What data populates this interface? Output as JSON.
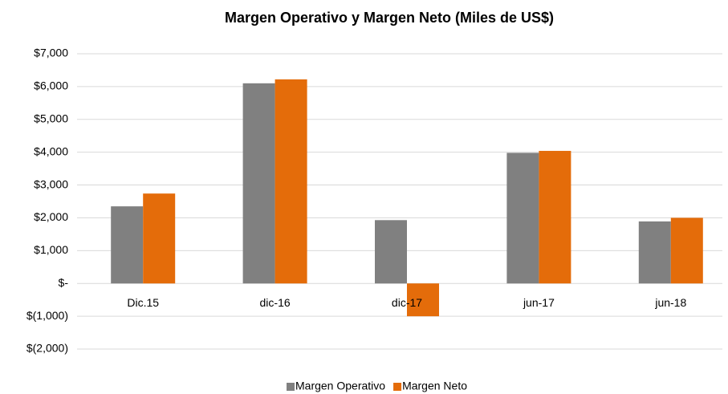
{
  "chart_data": {
    "type": "bar",
    "title": "Margen Operativo y Margen Neto (Miles de US$)",
    "categories": [
      "Dic.15",
      "dic-16",
      "dic-17",
      "jun-17",
      "jun-18"
    ],
    "series": [
      {
        "name": "Margen Operativo",
        "color": "#808080",
        "values": [
          2350,
          6100,
          1930,
          3980,
          1890
        ]
      },
      {
        "name": "Margen Neto",
        "color": "#e46c0a",
        "values": [
          2740,
          6220,
          -1000,
          4040,
          2000
        ]
      }
    ],
    "ylim": [
      -2000,
      7000
    ],
    "yticks": [
      {
        "value": -2000,
        "label": "$(2,000)"
      },
      {
        "value": -1000,
        "label": "$(1,000)"
      },
      {
        "value": 0,
        "label": "$-"
      },
      {
        "value": 1000,
        "label": "$1,000"
      },
      {
        "value": 2000,
        "label": "$2,000"
      },
      {
        "value": 3000,
        "label": "$3,000"
      },
      {
        "value": 4000,
        "label": "$4,000"
      },
      {
        "value": 5000,
        "label": "$5,000"
      },
      {
        "value": 6000,
        "label": "$6,000"
      },
      {
        "value": 7000,
        "label": "$7,000"
      }
    ],
    "grid": true,
    "legend": "bottom"
  }
}
